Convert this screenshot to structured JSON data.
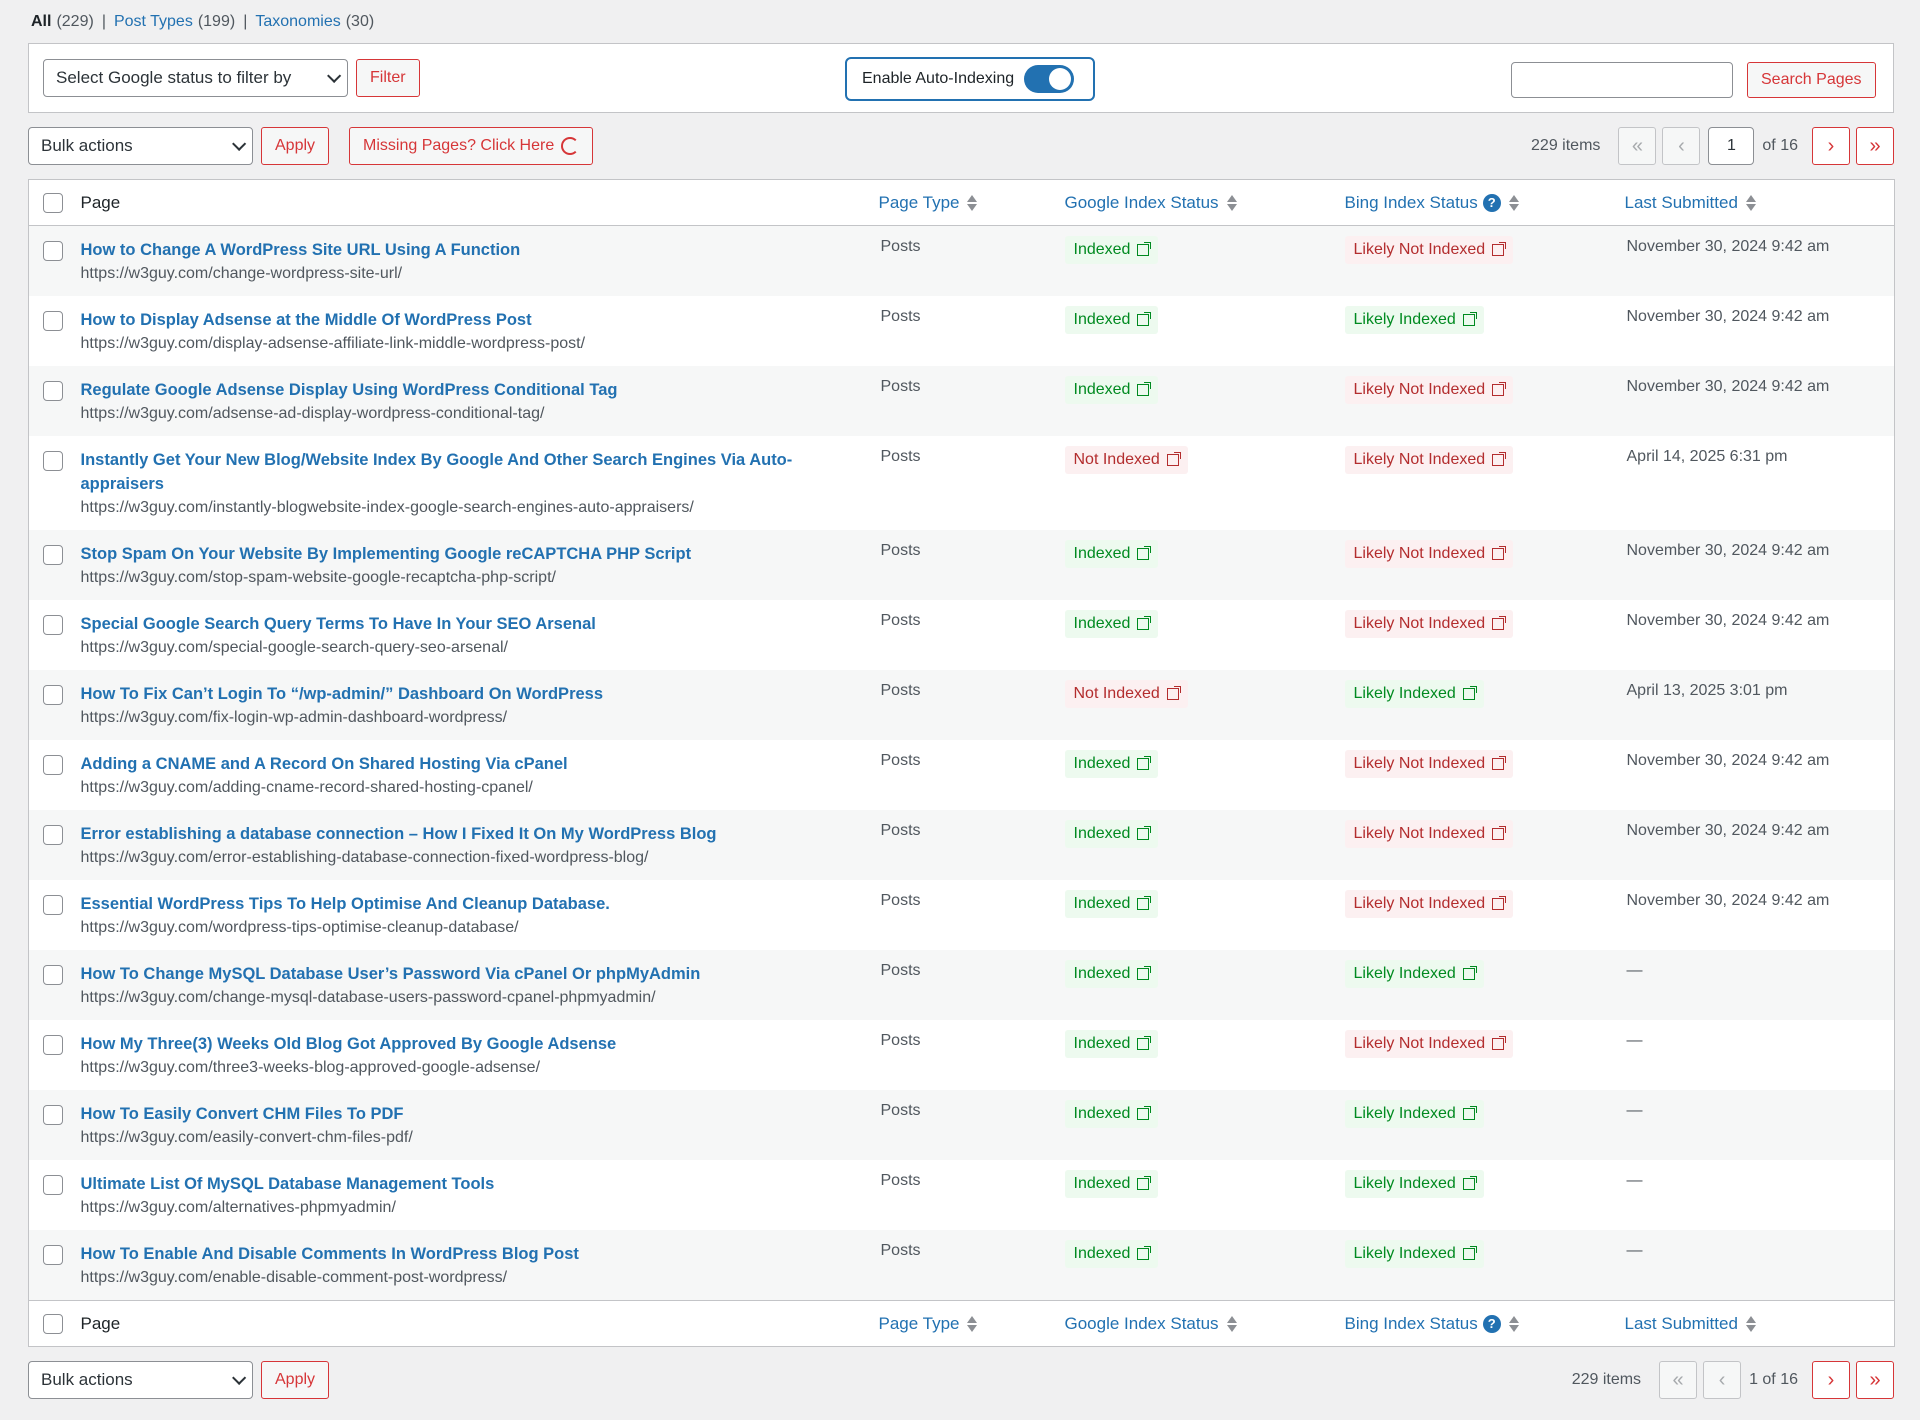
{
  "views": {
    "all_label": "All",
    "all_count": "(229)",
    "post_types_label": "Post Types",
    "post_types_count": "(199)",
    "taxonomies_label": "Taxonomies",
    "taxonomies_count": "(30)",
    "separator": "|"
  },
  "filter": {
    "select_label": "Select Google status to filter by",
    "filter_button": "Filter",
    "auto_index_label": "Enable Auto-Indexing",
    "auto_index_on": true,
    "search_value": "",
    "search_button": "Search Pages"
  },
  "tablenav_top": {
    "bulk_label": "Bulk actions",
    "apply_label": "Apply",
    "missing_label": "Missing Pages? Click Here",
    "items": "229 items",
    "first": "«",
    "prev": "‹",
    "current_page": "1",
    "of_pages": "of 16",
    "next": "›",
    "last": "»"
  },
  "tablenav_bottom": {
    "bulk_label": "Bulk actions",
    "apply_label": "Apply",
    "items": "229 items",
    "first": "«",
    "prev": "‹",
    "page_text": "1 of 16",
    "next": "›",
    "last": "»"
  },
  "columns": {
    "page": "Page",
    "page_type": "Page Type",
    "google": "Google Index Status",
    "bing": "Bing Index Status",
    "help": "?",
    "last_submitted": "Last Submitted"
  },
  "rows": [
    {
      "title": "How to Change A WordPress Site URL Using A Function",
      "url": "https://w3guy.com/change-wordpress-site-url/",
      "type": "Posts",
      "google": "Indexed",
      "bing": "Likely Not Indexed",
      "date": "November 30, 2024 9:42 am"
    },
    {
      "title": "How to Display Adsense at the Middle Of WordPress Post",
      "url": "https://w3guy.com/display-adsense-affiliate-link-middle-wordpress-post/",
      "type": "Posts",
      "google": "Indexed",
      "bing": "Likely Indexed",
      "date": "November 30, 2024 9:42 am"
    },
    {
      "title": "Regulate Google Adsense Display Using WordPress Conditional Tag",
      "url": "https://w3guy.com/adsense-ad-display-wordpress-conditional-tag/",
      "type": "Posts",
      "google": "Indexed",
      "bing": "Likely Not Indexed",
      "date": "November 30, 2024 9:42 am"
    },
    {
      "title": "Instantly Get Your New Blog/Website Index By Google And Other Search Engines Via Auto-appraisers",
      "url": "https://w3guy.com/instantly-blogwebsite-index-google-search-engines-auto-appraisers/",
      "type": "Posts",
      "google": "Not Indexed",
      "bing": "Likely Not Indexed",
      "date": "April 14, 2025 6:31 pm"
    },
    {
      "title": "Stop Spam On Your Website By Implementing Google reCAPTCHA PHP Script",
      "url": "https://w3guy.com/stop-spam-website-google-recaptcha-php-script/",
      "type": "Posts",
      "google": "Indexed",
      "bing": "Likely Not Indexed",
      "date": "November 30, 2024 9:42 am"
    },
    {
      "title": "Special Google Search Query Terms To Have In Your SEO Arsenal",
      "url": "https://w3guy.com/special-google-search-query-seo-arsenal/",
      "type": "Posts",
      "google": "Indexed",
      "bing": "Likely Not Indexed",
      "date": "November 30, 2024 9:42 am"
    },
    {
      "title": "How To Fix Can’t Login To “/wp-admin/” Dashboard On WordPress",
      "url": "https://w3guy.com/fix-login-wp-admin-dashboard-wordpress/",
      "type": "Posts",
      "google": "Not Indexed",
      "bing": "Likely Indexed",
      "date": "April 13, 2025 3:01 pm"
    },
    {
      "title": "Adding a CNAME and A Record On Shared Hosting Via cPanel",
      "url": "https://w3guy.com/adding-cname-record-shared-hosting-cpanel/",
      "type": "Posts",
      "google": "Indexed",
      "bing": "Likely Not Indexed",
      "date": "November 30, 2024 9:42 am"
    },
    {
      "title": "Error establishing a database connection – How I Fixed It On My WordPress Blog",
      "url": "https://w3guy.com/error-establishing-database-connection-fixed-wordpress-blog/",
      "type": "Posts",
      "google": "Indexed",
      "bing": "Likely Not Indexed",
      "date": "November 30, 2024 9:42 am"
    },
    {
      "title": "Essential WordPress Tips To Help Optimise And Cleanup Database.",
      "url": "https://w3guy.com/wordpress-tips-optimise-cleanup-database/",
      "type": "Posts",
      "google": "Indexed",
      "bing": "Likely Not Indexed",
      "date": "November 30, 2024 9:42 am"
    },
    {
      "title": "How To Change MySQL Database User’s Password Via cPanel Or phpMyAdmin",
      "url": "https://w3guy.com/change-mysql-database-users-password-cpanel-phpmyadmin/",
      "type": "Posts",
      "google": "Indexed",
      "bing": "Likely Indexed",
      "date": "—"
    },
    {
      "title": "How My Three(3) Weeks Old Blog Got Approved By Google Adsense",
      "url": "https://w3guy.com/three3-weeks-blog-approved-google-adsense/",
      "type": "Posts",
      "google": "Indexed",
      "bing": "Likely Not Indexed",
      "date": "—"
    },
    {
      "title": "How To Easily Convert CHM Files To PDF",
      "url": "https://w3guy.com/easily-convert-chm-files-pdf/",
      "type": "Posts",
      "google": "Indexed",
      "bing": "Likely Indexed",
      "date": "—"
    },
    {
      "title": "Ultimate List Of MySQL Database Management Tools",
      "url": "https://w3guy.com/alternatives-phpmyadmin/",
      "type": "Posts",
      "google": "Indexed",
      "bing": "Likely Indexed",
      "date": "—"
    },
    {
      "title": "How To Enable And Disable Comments In WordPress Blog Post",
      "url": "https://w3guy.com/enable-disable-comment-post-wordpress/",
      "type": "Posts",
      "google": "Indexed",
      "bing": "Likely Indexed",
      "date": "—"
    }
  ],
  "colors": {
    "link": "#2271b1",
    "danger": "#d63638",
    "indexed_bg": "#edfaef",
    "indexed_fg": "#008a20",
    "not_indexed_bg": "#fcf0f1",
    "not_indexed_fg": "#b32d2e"
  }
}
